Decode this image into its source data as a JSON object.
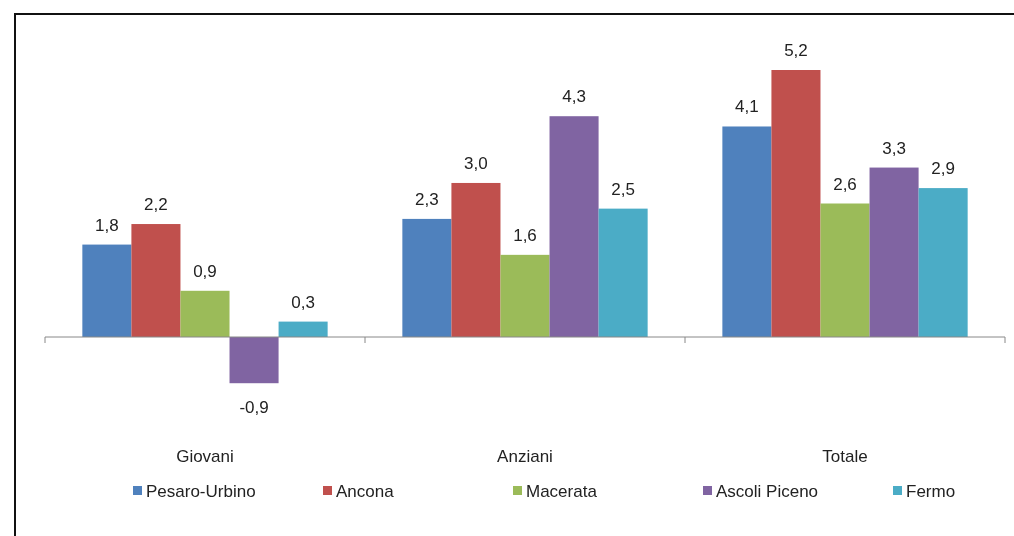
{
  "chart_data": {
    "type": "bar",
    "categories": [
      "Giovani",
      "Anziani",
      "Totale"
    ],
    "series": [
      {
        "name": "Pesaro-Urbino",
        "color": "#4f81bd",
        "values": [
          1.8,
          2.3,
          4.1
        ],
        "value_labels": [
          "1,8",
          "2,3",
          "4,1"
        ]
      },
      {
        "name": "Ancona",
        "color": "#c0504d",
        "values": [
          2.2,
          3.0,
          5.2
        ],
        "value_labels": [
          "2,2",
          "3,0",
          "5,2"
        ]
      },
      {
        "name": "Macerata",
        "color": "#9bbb59",
        "values": [
          0.9,
          1.6,
          2.6
        ],
        "value_labels": [
          "0,9",
          "1,6",
          "2,6"
        ]
      },
      {
        "name": "Ascoli Piceno",
        "color": "#8064a2",
        "values": [
          -0.9,
          4.3,
          3.3
        ],
        "value_labels": [
          "-0,9",
          "4,3",
          "3,3"
        ]
      },
      {
        "name": "Fermo",
        "color": "#4bacc6",
        "values": [
          0.3,
          2.5,
          2.9
        ],
        "value_labels": [
          "0,3",
          "2,5",
          "2,9"
        ]
      }
    ],
    "legend": "bottom"
  }
}
